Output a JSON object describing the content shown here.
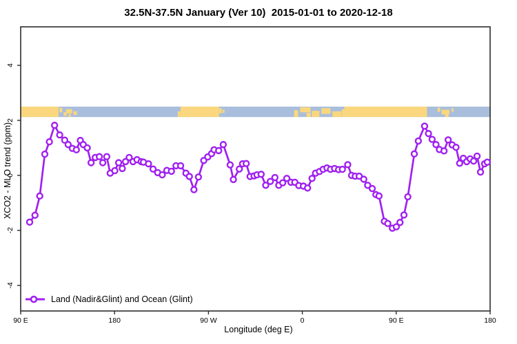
{
  "title": "32.5N-37.5N January (Ver 10)  2015-01-01 to 2020-12-18",
  "colors": {
    "line": "#A020F0",
    "marker_fill": "#ffffff",
    "land_band": "#FAD77E",
    "ocean_band": "#A9BEDC",
    "axis": "#2b2b2b",
    "text": "#000000"
  },
  "legend": {
    "entries": [
      {
        "label": "Land (Nadir&Glint) and Ocean (Glint)",
        "color": "#A020F0",
        "marker": "open-circle-on-line"
      }
    ],
    "position": "bottom-left-inside"
  },
  "chart_data": {
    "type": "line",
    "title": "32.5N-37.5N January (Ver 10)  2015-01-01 to 2020-12-18",
    "xlabel": "Longitude (deg E)",
    "ylabel": "XCO2 - MLO trend (ppm)",
    "xlim": [
      90,
      540
    ],
    "ylim": [
      -4.93,
      5.4
    ],
    "grid": false,
    "x_ticks": [
      {
        "value": 90,
        "label": "90 E"
      },
      {
        "value": 180,
        "label": "180"
      },
      {
        "value": 270,
        "label": "90 W"
      },
      {
        "value": 360,
        "label": "0"
      },
      {
        "value": 450,
        "label": "90 E"
      },
      {
        "value": 540,
        "label": "180"
      }
    ],
    "y_ticks": [
      {
        "value": -4,
        "label": "-4"
      },
      {
        "value": -2,
        "label": "-2"
      },
      {
        "value": 0,
        "label": "0"
      },
      {
        "value": 2,
        "label": "2"
      },
      {
        "value": 4,
        "label": "4"
      }
    ],
    "map_band": {
      "description": "land/ocean strip for 32.5N-37.5N along longitude",
      "ppm_range": [
        2.12,
        2.5
      ],
      "ocean_extent": [
        90,
        540
      ],
      "land_segments": [
        {
          "from": 90,
          "to": 126.3
        },
        {
          "from": 243.2,
          "to": 280.1
        },
        {
          "from": 400.2,
          "to": 479.5
        }
      ],
      "island_patches": [
        {
          "from": 127.2,
          "to": 129.8,
          "top": 0.1,
          "h": 0.45
        },
        {
          "from": 131.1,
          "to": 134.1,
          "top": 0.55,
          "h": 0.35
        },
        {
          "from": 133.4,
          "to": 139.3,
          "top": 0.25,
          "h": 0.4
        },
        {
          "from": 140.6,
          "to": 143.9,
          "top": 0.45,
          "h": 0.35
        },
        {
          "from": 136.0,
          "to": 138.0,
          "top": 0.7,
          "h": 0.3
        },
        {
          "from": 240.6,
          "to": 243.2,
          "top": 0.45,
          "h": 0.55
        },
        {
          "from": 280.1,
          "to": 282.7,
          "top": 0.15,
          "h": 0.5
        },
        {
          "from": 283.4,
          "to": 285.4,
          "top": 0.3,
          "h": 0.3
        },
        {
          "from": 352.1,
          "to": 356.0,
          "top": 0.35,
          "h": 0.65
        },
        {
          "from": 357.9,
          "to": 367.8,
          "top": 0.05,
          "h": 0.5
        },
        {
          "from": 364.0,
          "to": 368.0,
          "top": 0.6,
          "h": 0.4
        },
        {
          "from": 369.1,
          "to": 376.4,
          "top": 0.4,
          "h": 0.6
        },
        {
          "from": 378.3,
          "to": 387.0,
          "top": 0.15,
          "h": 0.55
        },
        {
          "from": 388.9,
          "to": 397.5,
          "top": 0.45,
          "h": 0.55
        },
        {
          "from": 397.8,
          "to": 400.2,
          "top": 0.25,
          "h": 0.75
        },
        {
          "from": 489.6,
          "to": 492.2,
          "top": 0.1,
          "h": 0.4
        },
        {
          "from": 493.5,
          "to": 501.0,
          "top": 0.3,
          "h": 0.45
        },
        {
          "from": 496.8,
          "to": 500.1,
          "top": 0.65,
          "h": 0.35
        },
        {
          "from": 503.0,
          "to": 504.9,
          "top": 0.15,
          "h": 0.35
        }
      ]
    },
    "series": [
      {
        "name": "Land (Nadir&Glint) and Ocean (Glint)",
        "color": "#A020F0",
        "marker": "open-circle",
        "points": [
          [
            98.6,
            -1.7
          ],
          [
            103.7,
            -1.45
          ],
          [
            108.3,
            -0.75
          ],
          [
            113.1,
            0.77
          ],
          [
            117.5,
            1.22
          ],
          [
            122.5,
            1.82
          ],
          [
            127.4,
            1.47
          ],
          [
            132.2,
            1.28
          ],
          [
            135.5,
            1.12
          ],
          [
            139.5,
            0.98
          ],
          [
            143.4,
            0.93
          ],
          [
            147.2,
            1.27
          ],
          [
            150.0,
            1.12
          ],
          [
            153.8,
            1.0
          ],
          [
            157.5,
            0.46
          ],
          [
            161.5,
            0.65
          ],
          [
            165.4,
            0.68
          ],
          [
            168.7,
            0.46
          ],
          [
            172.5,
            0.68
          ],
          [
            175.8,
            0.08
          ],
          [
            180.2,
            0.17
          ],
          [
            183.9,
            0.46
          ],
          [
            187.4,
            0.25
          ],
          [
            190.5,
            0.5
          ],
          [
            194.0,
            0.65
          ],
          [
            197.7,
            0.5
          ],
          [
            201.5,
            0.57
          ],
          [
            205.5,
            0.5
          ],
          [
            207.7,
            0.48
          ],
          [
            212.5,
            0.42
          ],
          [
            216.9,
            0.23
          ],
          [
            221.3,
            0.1
          ],
          [
            225.7,
            0.02
          ],
          [
            230.1,
            0.18
          ],
          [
            234.5,
            0.15
          ],
          [
            238.9,
            0.35
          ],
          [
            243.3,
            0.35
          ],
          [
            248.4,
            0.08
          ],
          [
            251.7,
            -0.04
          ],
          [
            256.1,
            -0.52
          ],
          [
            260.4,
            -0.06
          ],
          [
            265.5,
            0.54
          ],
          [
            269.3,
            0.67
          ],
          [
            273.0,
            0.79
          ],
          [
            275.4,
            0.93
          ],
          [
            279.8,
            0.9
          ],
          [
            284.2,
            1.12
          ],
          [
            290.8,
            0.38
          ],
          [
            293.9,
            -0.15
          ],
          [
            299.6,
            0.23
          ],
          [
            302.7,
            0.42
          ],
          [
            306.2,
            0.43
          ],
          [
            309.9,
            -0.04
          ],
          [
            313.7,
            -0.02
          ],
          [
            316.5,
            0.02
          ],
          [
            320.5,
            0.04
          ],
          [
            324.9,
            -0.36
          ],
          [
            329.3,
            -0.22
          ],
          [
            333.7,
            -0.08
          ],
          [
            337.4,
            -0.36
          ],
          [
            341.2,
            -0.27
          ],
          [
            345.1,
            -0.11
          ],
          [
            349.1,
            -0.25
          ],
          [
            352.8,
            -0.25
          ],
          [
            356.6,
            -0.37
          ],
          [
            361.0,
            -0.39
          ],
          [
            365.0,
            -0.46
          ],
          [
            369.3,
            -0.11
          ],
          [
            372.6,
            0.08
          ],
          [
            376.4,
            0.14
          ],
          [
            379.9,
            0.22
          ],
          [
            383.6,
            0.27
          ],
          [
            387.0,
            0.22
          ],
          [
            390.9,
            0.25
          ],
          [
            394.7,
            0.21
          ],
          [
            398.4,
            0.22
          ],
          [
            403.5,
            0.39
          ],
          [
            407.2,
            0.0
          ],
          [
            410.7,
            -0.03
          ],
          [
            414.5,
            -0.03
          ],
          [
            418.9,
            -0.14
          ],
          [
            422.6,
            -0.36
          ],
          [
            427.0,
            -0.48
          ],
          [
            430.5,
            -0.7
          ],
          [
            433.5,
            -0.75
          ],
          [
            438.6,
            -1.67
          ],
          [
            441.9,
            -1.75
          ],
          [
            446.3,
            -1.92
          ],
          [
            450.1,
            -1.87
          ],
          [
            453.6,
            -1.71
          ],
          [
            457.4,
            -1.44
          ],
          [
            461.1,
            -0.78
          ],
          [
            467.3,
            0.78
          ],
          [
            471.2,
            1.25
          ],
          [
            477.2,
            1.79
          ],
          [
            480.9,
            1.52
          ],
          [
            484.4,
            1.31
          ],
          [
            488.1,
            1.12
          ],
          [
            491.4,
            0.94
          ],
          [
            495.8,
            0.89
          ],
          [
            499.8,
            1.29
          ],
          [
            503.6,
            1.11
          ],
          [
            507.3,
            1.02
          ],
          [
            510.8,
            0.44
          ],
          [
            514.3,
            0.62
          ],
          [
            517.6,
            0.5
          ],
          [
            520.9,
            0.6
          ],
          [
            524.2,
            0.52
          ],
          [
            527.5,
            0.7
          ],
          [
            530.8,
            0.12
          ],
          [
            534.7,
            0.42
          ],
          [
            537.3,
            0.48
          ]
        ]
      }
    ],
    "legend_entries": [
      "Land (Nadir&Glint) and Ocean (Glint)"
    ]
  }
}
